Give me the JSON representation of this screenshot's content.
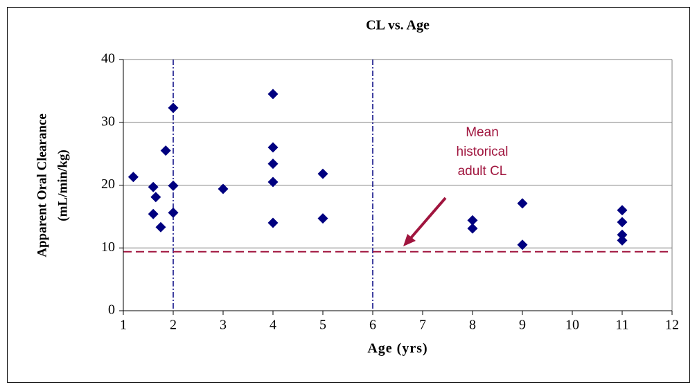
{
  "chart_data": {
    "type": "scatter",
    "title": "CL vs. Age",
    "xlabel": "Age (yrs)",
    "ylabel": [
      "Apparent Oral Clearance",
      "(mL/min/kg)"
    ],
    "x": [
      1.2,
      1.6,
      1.6,
      1.65,
      1.75,
      1.85,
      2,
      2,
      2,
      3,
      4,
      4,
      4,
      4,
      4,
      5,
      5,
      8,
      8,
      9,
      9,
      11,
      11,
      11,
      11
    ],
    "values": [
      21.3,
      19.7,
      15.4,
      18.1,
      13.3,
      25.5,
      32.3,
      19.9,
      15.6,
      19.4,
      34.5,
      26.0,
      23.4,
      20.5,
      14.0,
      21.8,
      14.7,
      14.4,
      13.1,
      17.1,
      10.5,
      16.0,
      14.1,
      12.1,
      11.2
    ],
    "color": "#000080",
    "xlim": [
      1,
      12
    ],
    "xticks": [
      1,
      2,
      3,
      4,
      5,
      6,
      7,
      8,
      9,
      10,
      11,
      12
    ],
    "ylim": [
      0,
      40
    ],
    "yticks": [
      0,
      10,
      20,
      30,
      40
    ],
    "grid": true,
    "hline": 9.4,
    "hline_color": "#a0153e",
    "vlines": [
      2,
      6
    ],
    "vline_color": "#000080",
    "annotation": [
      "Mean",
      "historical",
      "adult CL"
    ],
    "annotation_color": "#a0153e"
  }
}
